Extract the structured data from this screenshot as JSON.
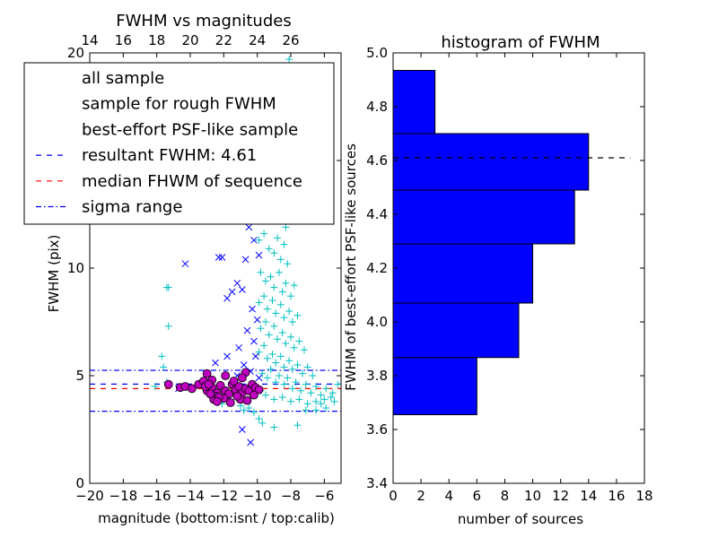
{
  "chart_data": [
    {
      "type": "scatter",
      "title": "FWHM vs magnitudes",
      "xlabel": "magnitude (bottom:isnt / top:calib)",
      "ylabel": "FWHM (pix)",
      "xlim": [
        -20,
        -5
      ],
      "ylim": [
        0,
        20
      ],
      "xticks": [
        "−20",
        "−18",
        "−16",
        "−14",
        "−12",
        "−10",
        "−8",
        "−6"
      ],
      "xtick_values": [
        -20,
        -18,
        -16,
        -14,
        -12,
        -10,
        -8,
        -6
      ],
      "yticks": [
        "0",
        "5",
        "10",
        "15",
        "20"
      ],
      "ytick_values": [
        0,
        5,
        10,
        15,
        20
      ],
      "top_axis": {
        "label_offset": 34,
        "ticks": [
          "14",
          "16",
          "18",
          "20",
          "22",
          "24",
          "26"
        ],
        "tick_values": [
          14,
          16,
          18,
          20,
          22,
          24,
          26
        ]
      },
      "grid": false,
      "legend_position": "upper-left",
      "legend": [
        {
          "label": "all sample",
          "marker": "+",
          "color": "#00bfbf"
        },
        {
          "label": "sample for rough FWHM",
          "marker": "x",
          "color": "#0000ff"
        },
        {
          "label": "best-effort PSF-like sample",
          "marker": "o",
          "color": "#bf00bf"
        },
        {
          "label": "resultant FWHM: 4.61",
          "style": "dashed",
          "color": "#0000ff"
        },
        {
          "label": "median FHWM of sequence",
          "style": "dashed",
          "color": "#ff0000"
        },
        {
          "label": "sigma range",
          "style": "dashdot",
          "color": "#0000ff"
        }
      ],
      "hlines": [
        {
          "y": 4.61,
          "color": "#0000ff",
          "style": "dashed"
        },
        {
          "y": 4.4,
          "color": "#ff0000",
          "style": "dashed"
        },
        {
          "y": 5.25,
          "color": "#0000ff",
          "style": "dashdot"
        },
        {
          "y": 3.35,
          "color": "#0000ff",
          "style": "dashdot"
        }
      ],
      "series": [
        {
          "name": "all sample",
          "marker": "+",
          "color": "#00bfbf",
          "points": [
            [
              -15.4,
              9.1
            ],
            [
              -15.3,
              9.1
            ],
            [
              -15.3,
              7.3
            ],
            [
              -15.7,
              5.9
            ],
            [
              -15.6,
              5.4
            ],
            [
              -15.4,
              4.7
            ],
            [
              -16.1,
              4.5
            ],
            [
              -12.1,
              3.7
            ],
            [
              -11.6,
              3.9
            ],
            [
              -11.0,
              3.6
            ],
            [
              -10.8,
              3.4
            ],
            [
              -10.5,
              3.5
            ],
            [
              -10.2,
              3.3
            ],
            [
              -9.9,
              3.0
            ],
            [
              -9.7,
              2.8
            ],
            [
              -9.0,
              2.6
            ],
            [
              -7.6,
              2.7
            ],
            [
              -7.1,
              3.4
            ],
            [
              -6.5,
              3.4
            ],
            [
              -6.2,
              3.7
            ],
            [
              -5.9,
              3.5
            ],
            [
              -5.4,
              3.8
            ],
            [
              -5.2,
              4.6
            ],
            [
              -9.8,
              16.1
            ],
            [
              -9.5,
              15.4
            ],
            [
              -9.2,
              15.0
            ],
            [
              -8.8,
              16.3
            ],
            [
              -8.6,
              14.6
            ],
            [
              -8.3,
              18.2
            ],
            [
              -8.1,
              19.7
            ],
            [
              -7.9,
              19.4
            ],
            [
              -9.7,
              13.3
            ],
            [
              -9.4,
              12.6
            ],
            [
              -9.1,
              12.8
            ],
            [
              -8.9,
              12.2
            ],
            [
              -8.7,
              13.6
            ],
            [
              -8.5,
              12.9
            ],
            [
              -8.3,
              11.9
            ],
            [
              -8.1,
              12.4
            ],
            [
              -9.9,
              11.3
            ],
            [
              -9.6,
              11.6
            ],
            [
              -9.3,
              10.9
            ],
            [
              -9.0,
              10.7
            ],
            [
              -8.8,
              11.4
            ],
            [
              -8.6,
              10.4
            ],
            [
              -8.4,
              11.1
            ],
            [
              -8.2,
              10.2
            ],
            [
              -9.8,
              9.8
            ],
            [
              -9.5,
              9.4
            ],
            [
              -9.2,
              9.6
            ],
            [
              -9.0,
              9.1
            ],
            [
              -8.7,
              9.8
            ],
            [
              -8.5,
              8.9
            ],
            [
              -8.3,
              9.3
            ],
            [
              -8.0,
              8.7
            ],
            [
              -7.8,
              9.2
            ],
            [
              -9.9,
              8.4
            ],
            [
              -9.6,
              8.7
            ],
            [
              -9.4,
              8.1
            ],
            [
              -9.1,
              8.5
            ],
            [
              -8.9,
              7.9
            ],
            [
              -8.6,
              8.3
            ],
            [
              -8.4,
              7.7
            ],
            [
              -8.1,
              8.0
            ],
            [
              -7.9,
              7.5
            ],
            [
              -7.6,
              7.8
            ],
            [
              -9.8,
              7.2
            ],
            [
              -9.5,
              7.5
            ],
            [
              -9.3,
              6.9
            ],
            [
              -9.0,
              7.3
            ],
            [
              -8.8,
              6.7
            ],
            [
              -8.5,
              7.0
            ],
            [
              -8.3,
              6.5
            ],
            [
              -8.0,
              6.8
            ],
            [
              -7.8,
              6.3
            ],
            [
              -7.5,
              6.6
            ],
            [
              -7.2,
              6.2
            ],
            [
              -9.9,
              6.1
            ],
            [
              -9.6,
              6.4
            ],
            [
              -9.4,
              5.8
            ],
            [
              -9.1,
              6.0
            ],
            [
              -8.9,
              5.6
            ],
            [
              -8.6,
              5.9
            ],
            [
              -8.4,
              5.4
            ],
            [
              -8.1,
              5.7
            ],
            [
              -7.9,
              5.3
            ],
            [
              -7.6,
              5.5
            ],
            [
              -7.3,
              5.1
            ],
            [
              -7.0,
              5.4
            ],
            [
              -6.7,
              5.0
            ],
            [
              -9.7,
              5.1
            ],
            [
              -9.4,
              4.9
            ],
            [
              -9.2,
              5.3
            ],
            [
              -8.9,
              4.7
            ],
            [
              -8.7,
              5.0
            ],
            [
              -8.4,
              4.6
            ],
            [
              -8.2,
              4.9
            ],
            [
              -7.9,
              4.4
            ],
            [
              -7.7,
              4.7
            ],
            [
              -7.4,
              4.3
            ],
            [
              -7.1,
              4.6
            ],
            [
              -6.8,
              4.2
            ],
            [
              -6.5,
              4.5
            ],
            [
              -6.2,
              4.1
            ],
            [
              -5.9,
              4.4
            ],
            [
              -5.6,
              4.0
            ],
            [
              -9.8,
              4.3
            ],
            [
              -9.5,
              4.1
            ],
            [
              -9.0,
              3.9
            ],
            [
              -8.5,
              4.0
            ],
            [
              -8.0,
              3.8
            ],
            [
              -7.5,
              3.9
            ],
            [
              -7.0,
              3.7
            ],
            [
              -6.5,
              3.8
            ],
            [
              -6.0,
              3.9
            ],
            [
              -5.5,
              4.2
            ]
          ]
        },
        {
          "name": "sample for rough FWHM",
          "marker": "x",
          "color": "#0000ff",
          "points": [
            [
              -14.3,
              10.2
            ],
            [
              -12.3,
              10.5
            ],
            [
              -12.1,
              10.5
            ],
            [
              -11.2,
              9.3
            ],
            [
              -10.9,
              9.0
            ],
            [
              -11.5,
              8.9
            ],
            [
              -10.7,
              10.4
            ],
            [
              -11.8,
              8.6
            ],
            [
              -10.4,
              15.9
            ],
            [
              -10.1,
              15.6
            ],
            [
              -10.3,
              13.5
            ],
            [
              -10.0,
              12.7
            ],
            [
              -10.5,
              11.9
            ],
            [
              -10.2,
              11.3
            ],
            [
              -9.9,
              10.6
            ],
            [
              -10.3,
              8.1
            ],
            [
              -10.0,
              7.6
            ],
            [
              -10.6,
              7.1
            ],
            [
              -10.2,
              6.6
            ],
            [
              -11.1,
              6.3
            ],
            [
              -11.8,
              5.9
            ],
            [
              -12.5,
              5.6
            ],
            [
              -10.8,
              5.5
            ],
            [
              -10.1,
              5.9
            ],
            [
              -10.4,
              5.2
            ],
            [
              -9.9,
              4.9
            ],
            [
              -11.2,
              5.0
            ],
            [
              -13.4,
              4.6
            ],
            [
              -14.7,
              4.4
            ],
            [
              -12.9,
              4.3
            ],
            [
              -10.9,
              2.5
            ],
            [
              -10.4,
              1.9
            ],
            [
              -11.7,
              4.0
            ],
            [
              -10.6,
              4.3
            ]
          ]
        },
        {
          "name": "best-effort PSF-like sample",
          "marker": "o",
          "color": "#bf00bf",
          "points": [
            [
              -15.3,
              4.6
            ],
            [
              -14.6,
              4.45
            ],
            [
              -14.3,
              4.5
            ],
            [
              -13.9,
              4.4
            ],
            [
              -13.5,
              4.6
            ],
            [
              -13.2,
              4.75
            ],
            [
              -13.0,
              4.3
            ],
            [
              -12.7,
              4.45
            ],
            [
              -12.4,
              4.2
            ],
            [
              -12.2,
              4.55
            ],
            [
              -11.9,
              4.3
            ],
            [
              -11.7,
              4.15
            ],
            [
              -11.5,
              4.6
            ],
            [
              -11.3,
              4.35
            ],
            [
              -11.1,
              4.5
            ],
            [
              -10.9,
              4.2
            ],
            [
              -10.7,
              4.4
            ],
            [
              -10.5,
              4.3
            ],
            [
              -10.3,
              4.6
            ],
            [
              -10.1,
              4.45
            ],
            [
              -9.9,
              4.35
            ],
            [
              -12.0,
              3.95
            ],
            [
              -12.5,
              4.05
            ],
            [
              -12.6,
              3.9
            ],
            [
              -11.0,
              3.9
            ],
            [
              -11.6,
              3.75
            ],
            [
              -12.3,
              4.0
            ],
            [
              -10.6,
              3.85
            ],
            [
              -10.2,
              4.1
            ],
            [
              -13.0,
              5.1
            ],
            [
              -11.9,
              5.0
            ],
            [
              -10.7,
              5.15
            ],
            [
              -12.7,
              4.8
            ],
            [
              -11.4,
              4.75
            ],
            [
              -10.9,
              4.9
            ],
            [
              -12.4,
              3.8
            ],
            [
              -12.8,
              4.15
            ],
            [
              -11.2,
              4.05
            ],
            [
              -13.1,
              4.5
            ],
            [
              -12.9,
              4.6
            ]
          ]
        }
      ]
    },
    {
      "type": "bar",
      "orientation": "horizontal",
      "title": "histogram of FWHM",
      "xlabel": "number of sources",
      "ylabel": "FWHM of best-effort PSF-like sources",
      "xlim": [
        0,
        18
      ],
      "ylim": [
        3.4,
        5.0
      ],
      "xticks": [
        "0",
        "2",
        "4",
        "6",
        "8",
        "10",
        "12",
        "14",
        "16",
        "18"
      ],
      "xtick_values": [
        0,
        2,
        4,
        6,
        8,
        10,
        12,
        14,
        16,
        18
      ],
      "yticks": [
        "3.4",
        "3.6",
        "3.8",
        "4.0",
        "4.2",
        "4.4",
        "4.6",
        "4.8",
        "5.0"
      ],
      "ytick_values": [
        3.4,
        3.6,
        3.8,
        4.0,
        4.2,
        4.4,
        4.6,
        4.8,
        5.0
      ],
      "bin_edges": [
        3.655,
        3.8675,
        4.07,
        4.29,
        4.49,
        4.7,
        4.935
      ],
      "values": [
        6,
        9,
        10,
        13,
        14,
        3
      ],
      "bar_color": "#0000ff",
      "hline": {
        "y": 4.61,
        "x_end": 17.0,
        "color": "#000000",
        "style": "dashed"
      },
      "grid": false
    }
  ]
}
